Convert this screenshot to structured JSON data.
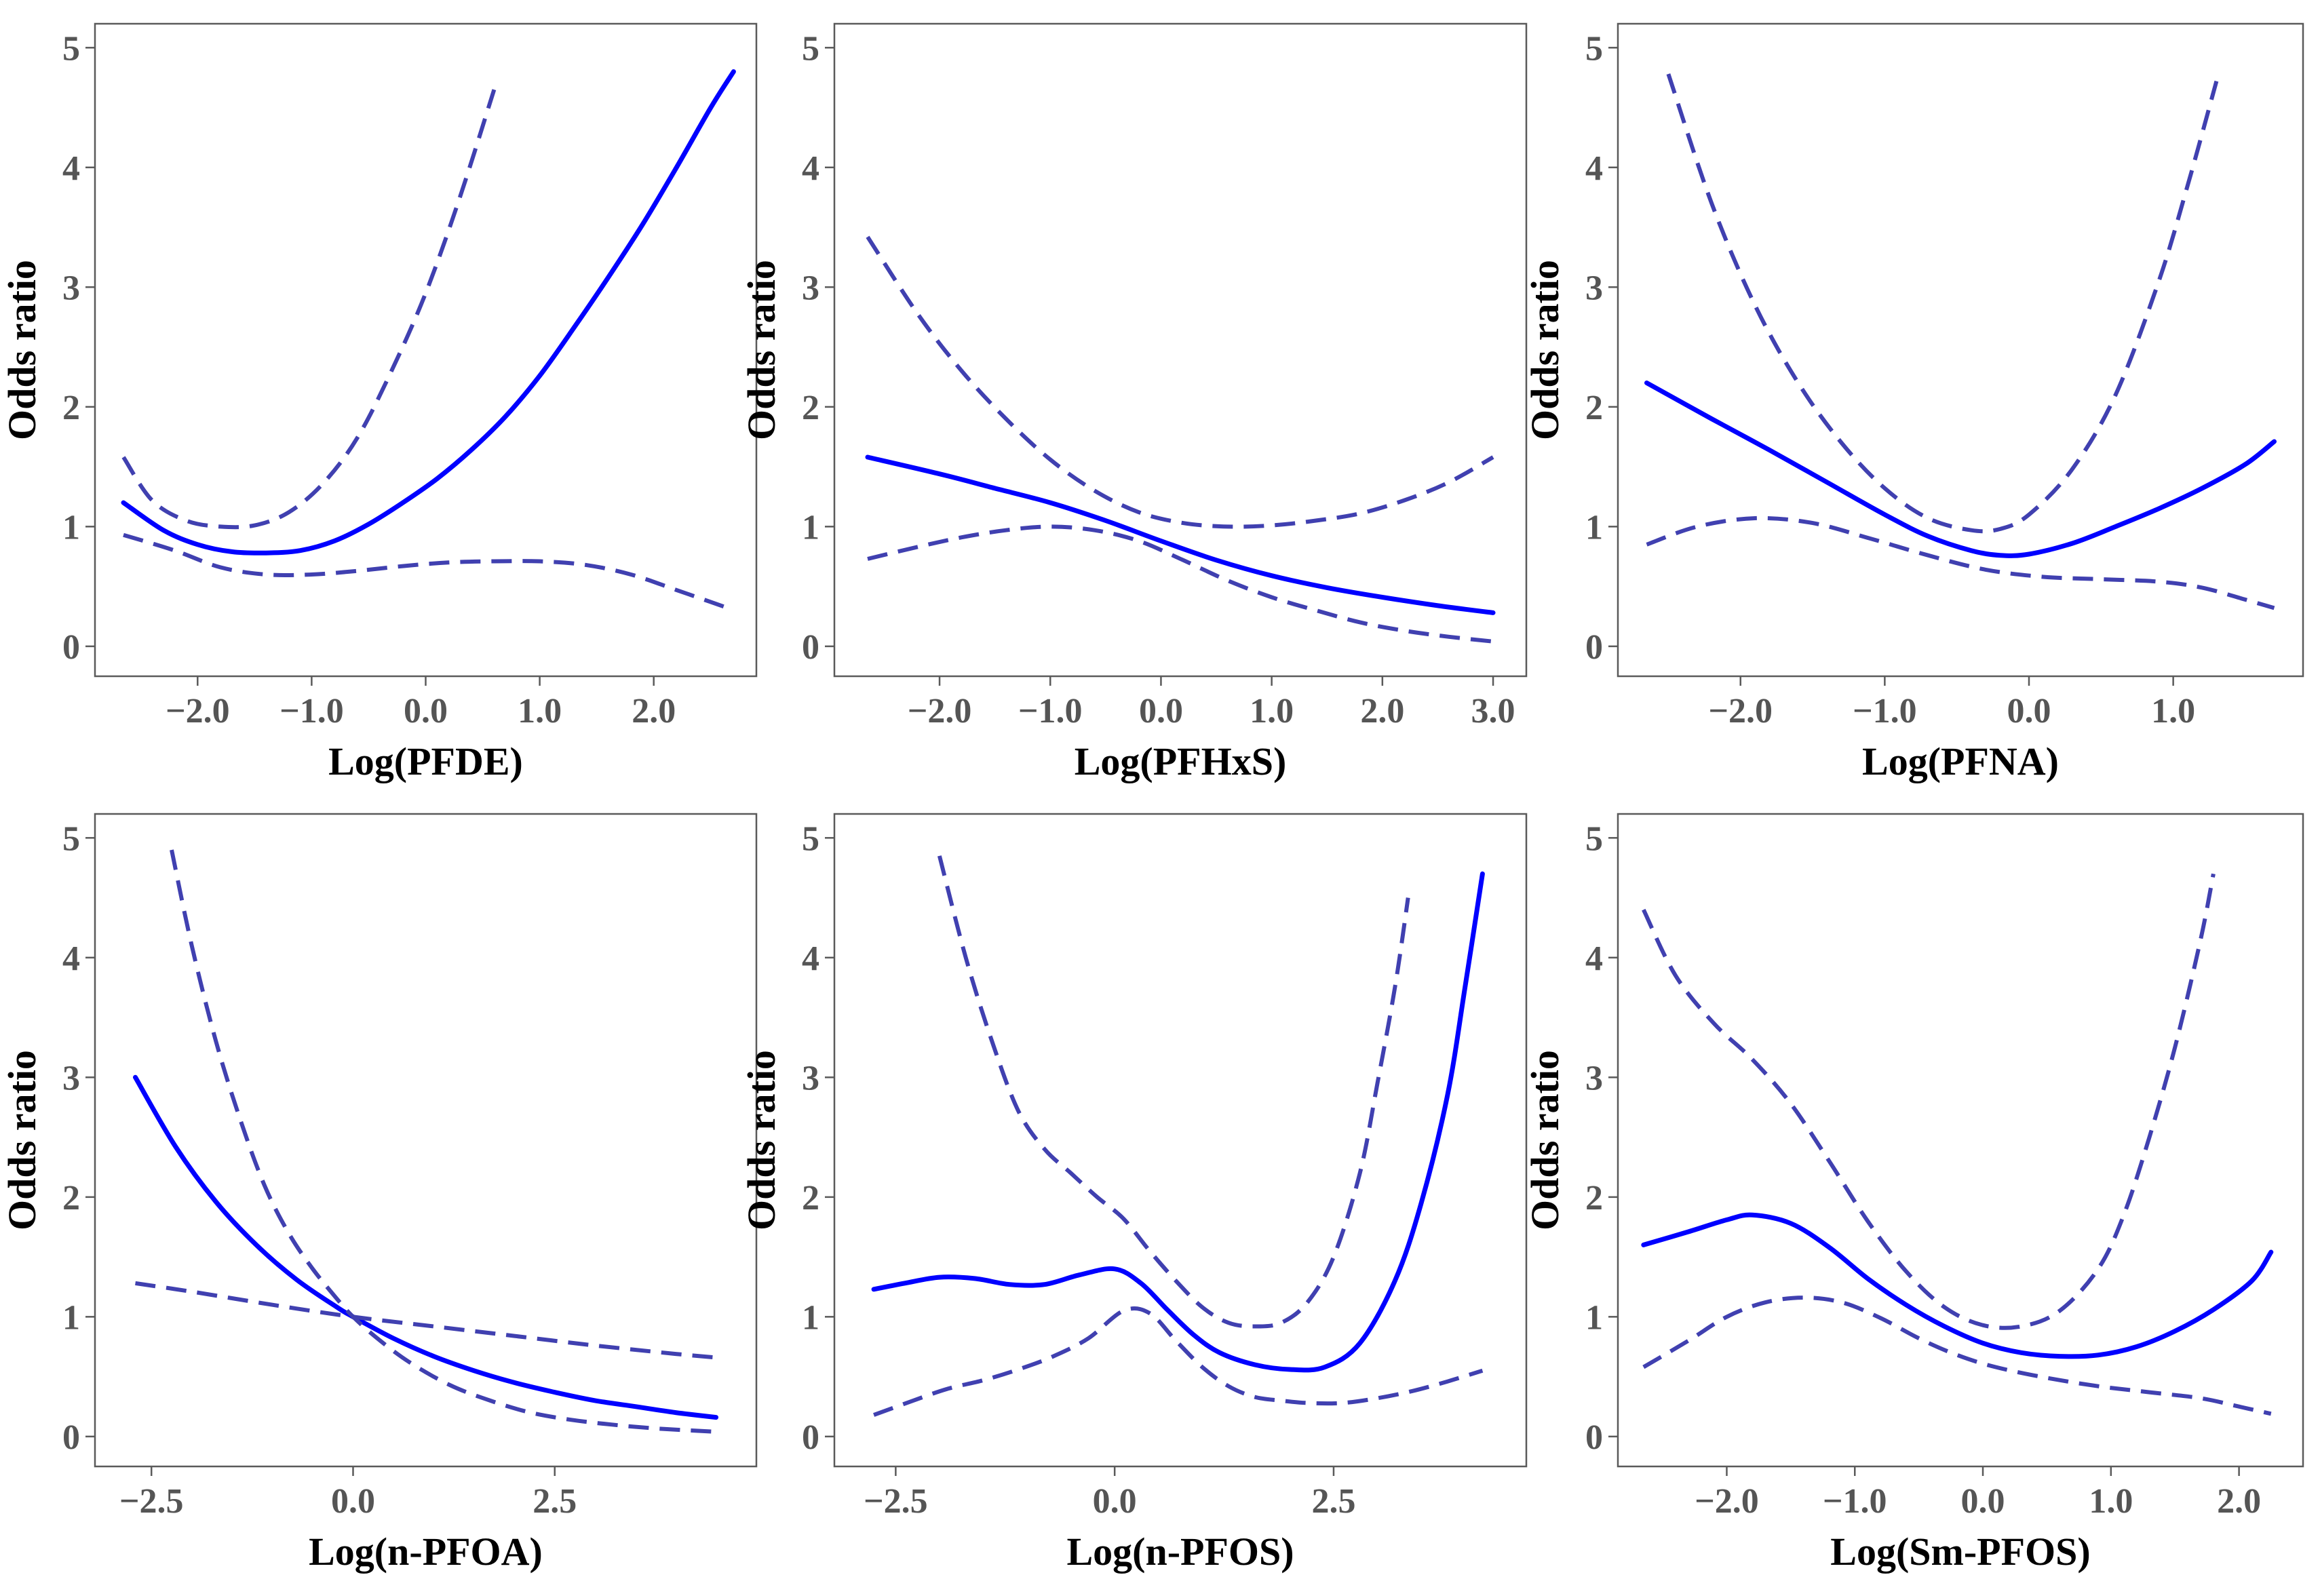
{
  "colors": {
    "estimate": "#0000ff",
    "ci": "#4040b0",
    "axis": "#5a5a5a",
    "tick_label": "#555555"
  },
  "chart_data": [
    {
      "type": "line",
      "title": "",
      "xlabel": "Log(PFDE)",
      "ylabel": "Odds ratio",
      "xlim": [
        -2.9,
        2.9
      ],
      "ylim": [
        -0.25,
        5.2
      ],
      "xticks": [
        -2.0,
        -1.0,
        0.0,
        1.0,
        2.0
      ],
      "xtick_labels": [
        "−2.0",
        "−1.0",
        "0.0",
        "1.0",
        "2.0"
      ],
      "yticks": [
        0,
        1,
        2,
        3,
        4,
        5
      ],
      "ytick_labels": [
        "0",
        "1",
        "2",
        "3",
        "4",
        "5"
      ],
      "series": [
        {
          "name": "odds ratio",
          "style": "solid",
          "x": [
            -2.65,
            -2.3,
            -2.0,
            -1.7,
            -1.4,
            -1.1,
            -0.8,
            -0.5,
            -0.2,
            0.1,
            0.4,
            0.7,
            1.0,
            1.3,
            1.6,
            1.9,
            2.2,
            2.5,
            2.7
          ],
          "y": [
            1.2,
            0.97,
            0.85,
            0.79,
            0.78,
            0.8,
            0.88,
            1.02,
            1.2,
            1.4,
            1.64,
            1.92,
            2.26,
            2.66,
            3.08,
            3.52,
            4.0,
            4.5,
            4.8
          ]
        },
        {
          "name": "upper 95% CI",
          "style": "dashed",
          "x": [
            -2.65,
            -2.4,
            -2.1,
            -1.8,
            -1.5,
            -1.2,
            -0.9,
            -0.6,
            -0.3,
            0.0,
            0.3,
            0.6
          ],
          "y": [
            1.58,
            1.22,
            1.05,
            1.0,
            1.01,
            1.12,
            1.36,
            1.74,
            2.3,
            2.95,
            3.75,
            4.65
          ]
        },
        {
          "name": "lower 95% CI",
          "style": "dashed",
          "x": [
            -2.65,
            -2.2,
            -1.8,
            -1.4,
            -1.0,
            -0.6,
            -0.2,
            0.2,
            0.6,
            1.0,
            1.4,
            1.8,
            2.2,
            2.65
          ],
          "y": [
            0.93,
            0.8,
            0.66,
            0.6,
            0.6,
            0.63,
            0.67,
            0.7,
            0.71,
            0.71,
            0.68,
            0.6,
            0.47,
            0.32
          ]
        }
      ]
    },
    {
      "type": "line",
      "title": "",
      "xlabel": "Log(PFHxS)",
      "ylabel": "Odds ratio",
      "xlim": [
        -2.95,
        3.3
      ],
      "ylim": [
        -0.25,
        5.2
      ],
      "xticks": [
        -2.0,
        -1.0,
        0.0,
        1.0,
        2.0,
        3.0
      ],
      "xtick_labels": [
        "−2.0",
        "−1.0",
        "0.0",
        "1.0",
        "2.0",
        "3.0"
      ],
      "yticks": [
        0,
        1,
        2,
        3,
        4,
        5
      ],
      "ytick_labels": [
        "0",
        "1",
        "2",
        "3",
        "4",
        "5"
      ],
      "series": [
        {
          "name": "odds ratio",
          "style": "solid",
          "x": [
            -2.65,
            -2.0,
            -1.5,
            -1.0,
            -0.5,
            0.0,
            0.5,
            1.0,
            1.5,
            2.0,
            2.5,
            3.0
          ],
          "y": [
            1.58,
            1.44,
            1.32,
            1.2,
            1.05,
            0.88,
            0.72,
            0.59,
            0.49,
            0.41,
            0.34,
            0.28
          ]
        },
        {
          "name": "upper 95% CI",
          "style": "dashed",
          "x": [
            -2.65,
            -2.2,
            -1.8,
            -1.4,
            -1.0,
            -0.6,
            -0.2,
            0.2,
            0.6,
            1.0,
            1.4,
            1.8,
            2.2,
            2.6,
            3.0
          ],
          "y": [
            3.42,
            2.78,
            2.3,
            1.9,
            1.56,
            1.3,
            1.12,
            1.03,
            1.0,
            1.01,
            1.05,
            1.11,
            1.22,
            1.37,
            1.58
          ]
        },
        {
          "name": "lower 95% CI",
          "style": "dashed",
          "x": [
            -2.65,
            -2.2,
            -1.8,
            -1.4,
            -1.0,
            -0.6,
            -0.2,
            0.2,
            0.6,
            1.0,
            1.4,
            1.8,
            2.2,
            2.6,
            3.0
          ],
          "y": [
            0.73,
            0.83,
            0.91,
            0.97,
            1.0,
            0.97,
            0.88,
            0.72,
            0.55,
            0.41,
            0.3,
            0.2,
            0.13,
            0.08,
            0.04
          ]
        }
      ]
    },
    {
      "type": "line",
      "title": "",
      "xlabel": "Log(PFNA)",
      "ylabel": "Odds ratio",
      "xlim": [
        -2.85,
        1.9
      ],
      "ylim": [
        -0.25,
        5.2
      ],
      "xticks": [
        -2.0,
        -1.0,
        0.0,
        1.0
      ],
      "xtick_labels": [
        "−2.0",
        "−1.0",
        "0.0",
        "1.0"
      ],
      "yticks": [
        0,
        1,
        2,
        3,
        4,
        5
      ],
      "ytick_labels": [
        "0",
        "1",
        "2",
        "3",
        "4",
        "5"
      ],
      "series": [
        {
          "name": "odds ratio",
          "style": "solid",
          "x": [
            -2.65,
            -2.2,
            -1.8,
            -1.4,
            -1.0,
            -0.7,
            -0.4,
            -0.2,
            0.0,
            0.3,
            0.6,
            0.9,
            1.2,
            1.5,
            1.7
          ],
          "y": [
            2.2,
            1.9,
            1.64,
            1.37,
            1.1,
            0.92,
            0.8,
            0.76,
            0.77,
            0.86,
            1.0,
            1.15,
            1.32,
            1.52,
            1.71
          ]
        },
        {
          "name": "upper 95% CI",
          "style": "dashed",
          "x": [
            -2.5,
            -2.2,
            -1.9,
            -1.6,
            -1.3,
            -1.0,
            -0.7,
            -0.4,
            -0.2,
            0.0,
            0.3,
            0.6,
            0.9,
            1.1,
            1.3
          ],
          "y": [
            4.78,
            3.7,
            2.85,
            2.2,
            1.7,
            1.32,
            1.07,
            0.97,
            0.98,
            1.1,
            1.48,
            2.1,
            3.05,
            3.85,
            4.72
          ]
        },
        {
          "name": "lower 95% CI",
          "style": "dashed",
          "x": [
            -2.65,
            -2.3,
            -1.9,
            -1.5,
            -1.1,
            -0.7,
            -0.3,
            0.1,
            0.5,
            0.9,
            1.2,
            1.5,
            1.7
          ],
          "y": [
            0.85,
            1.0,
            1.07,
            1.03,
            0.9,
            0.76,
            0.64,
            0.58,
            0.56,
            0.54,
            0.49,
            0.39,
            0.32
          ]
        }
      ]
    },
    {
      "type": "line",
      "title": "",
      "xlabel": "Log(n-PFOA)",
      "ylabel": "Odds ratio",
      "xlim": [
        -3.2,
        5.0
      ],
      "ylim": [
        -0.25,
        5.2
      ],
      "xticks": [
        -2.5,
        0.0,
        2.5
      ],
      "xtick_labels": [
        "−2.5",
        "0.0",
        "2.5"
      ],
      "yticks": [
        0,
        1,
        2,
        3,
        4,
        5
      ],
      "ytick_labels": [
        "0",
        "1",
        "2",
        "3",
        "4",
        "5"
      ],
      "series": [
        {
          "name": "odds ratio",
          "style": "solid",
          "x": [
            -2.7,
            -2.2,
            -1.7,
            -1.2,
            -0.7,
            -0.2,
            0.0,
            0.5,
            1.0,
            1.5,
            2.0,
            2.5,
            3.0,
            3.5,
            4.0,
            4.5
          ],
          "y": [
            3.0,
            2.42,
            1.96,
            1.6,
            1.31,
            1.08,
            1.0,
            0.82,
            0.67,
            0.55,
            0.45,
            0.37,
            0.3,
            0.25,
            0.2,
            0.16
          ]
        },
        {
          "name": "upper 95% CI",
          "style": "dashed",
          "x": [
            -2.25,
            -2.0,
            -1.7,
            -1.4,
            -1.1,
            -0.8,
            -0.5,
            -0.2,
            0.0,
            0.3,
            0.7,
            1.2,
            1.7,
            2.2,
            2.7,
            3.2,
            3.7,
            4.2,
            4.5
          ],
          "y": [
            4.9,
            4.1,
            3.3,
            2.65,
            2.1,
            1.7,
            1.4,
            1.15,
            1.0,
            0.82,
            0.62,
            0.43,
            0.3,
            0.2,
            0.14,
            0.1,
            0.07,
            0.05,
            0.04
          ]
        },
        {
          "name": "lower 95% CI",
          "style": "dashed",
          "x": [
            -2.7,
            -2.0,
            -1.0,
            0.0,
            1.0,
            2.0,
            3.0,
            4.0,
            4.5
          ],
          "y": [
            1.28,
            1.21,
            1.1,
            1.0,
            0.92,
            0.84,
            0.76,
            0.69,
            0.66
          ]
        }
      ]
    },
    {
      "type": "line",
      "title": "",
      "xlabel": "Log(n-PFOS)",
      "ylabel": "Odds ratio",
      "xlim": [
        -3.2,
        4.7
      ],
      "ylim": [
        -0.25,
        5.2
      ],
      "xticks": [
        -2.5,
        0.0,
        2.5
      ],
      "xtick_labels": [
        "−2.5",
        "0.0",
        "2.5"
      ],
      "yticks": [
        0,
        1,
        2,
        3,
        4,
        5
      ],
      "ytick_labels": [
        "0",
        "1",
        "2",
        "3",
        "4",
        "5"
      ],
      "series": [
        {
          "name": "odds ratio",
          "style": "solid",
          "x": [
            -2.75,
            -2.4,
            -2.0,
            -1.6,
            -1.2,
            -0.8,
            -0.4,
            0.0,
            0.3,
            0.6,
            0.9,
            1.2,
            1.6,
            2.0,
            2.4,
            2.8,
            3.2,
            3.5,
            3.8,
            4.0,
            4.2
          ],
          "y": [
            1.23,
            1.28,
            1.33,
            1.32,
            1.27,
            1.27,
            1.35,
            1.4,
            1.28,
            1.06,
            0.85,
            0.7,
            0.6,
            0.56,
            0.58,
            0.78,
            1.3,
            1.95,
            2.85,
            3.75,
            4.7
          ]
        },
        {
          "name": "upper 95% CI",
          "style": "dashed",
          "x": [
            -2.0,
            -1.7,
            -1.4,
            -1.1,
            -0.8,
            -0.5,
            -0.2,
            0.1,
            0.4,
            0.7,
            1.0,
            1.3,
            1.6,
            1.9,
            2.2,
            2.5,
            2.8,
            3.0,
            3.2,
            3.35
          ],
          "y": [
            4.85,
            4.0,
            3.3,
            2.72,
            2.4,
            2.2,
            2.0,
            1.82,
            1.55,
            1.3,
            1.08,
            0.95,
            0.92,
            0.95,
            1.12,
            1.5,
            2.2,
            2.95,
            3.75,
            4.5
          ]
        },
        {
          "name": "lower 95% CI",
          "style": "dashed",
          "x": [
            -2.75,
            -2.3,
            -1.9,
            -1.5,
            -1.1,
            -0.7,
            -0.3,
            0.1,
            0.4,
            0.7,
            1.0,
            1.3,
            1.6,
            1.9,
            2.2,
            2.6,
            3.0,
            3.4,
            3.8,
            4.2
          ],
          "y": [
            0.18,
            0.3,
            0.4,
            0.47,
            0.56,
            0.67,
            0.82,
            1.05,
            1.03,
            0.8,
            0.58,
            0.42,
            0.33,
            0.3,
            0.28,
            0.28,
            0.32,
            0.38,
            0.46,
            0.55
          ]
        }
      ]
    },
    {
      "type": "line",
      "title": "",
      "xlabel": "Log(Sm-PFOS)",
      "ylabel": "Odds ratio",
      "xlim": [
        -2.85,
        2.5
      ],
      "ylim": [
        -0.25,
        5.2
      ],
      "xticks": [
        -2.0,
        -1.0,
        0.0,
        1.0,
        2.0
      ],
      "xtick_labels": [
        "−2.0",
        "−1.0",
        "0.0",
        "1.0",
        "2.0"
      ],
      "yticks": [
        0,
        1,
        2,
        3,
        4,
        5
      ],
      "ytick_labels": [
        "0",
        "1",
        "2",
        "3",
        "4",
        "5"
      ],
      "series": [
        {
          "name": "odds ratio",
          "style": "solid",
          "x": [
            -2.65,
            -2.3,
            -2.0,
            -1.8,
            -1.5,
            -1.2,
            -0.9,
            -0.6,
            -0.3,
            0.0,
            0.3,
            0.6,
            0.9,
            1.2,
            1.5,
            1.8,
            2.1,
            2.25
          ],
          "y": [
            1.6,
            1.71,
            1.81,
            1.85,
            1.78,
            1.58,
            1.32,
            1.1,
            0.92,
            0.78,
            0.7,
            0.67,
            0.68,
            0.75,
            0.88,
            1.06,
            1.3,
            1.54
          ]
        },
        {
          "name": "upper 95% CI",
          "style": "dashed",
          "x": [
            -2.65,
            -2.4,
            -2.1,
            -1.8,
            -1.5,
            -1.2,
            -0.9,
            -0.6,
            -0.3,
            0.0,
            0.3,
            0.6,
            0.9,
            1.1,
            1.3,
            1.5,
            1.7,
            1.8
          ],
          "y": [
            4.4,
            3.85,
            3.45,
            3.15,
            2.78,
            2.3,
            1.8,
            1.38,
            1.08,
            0.93,
            0.92,
            1.05,
            1.4,
            1.85,
            2.5,
            3.25,
            4.15,
            4.7
          ]
        },
        {
          "name": "lower 95% CI",
          "style": "dashed",
          "x": [
            -2.65,
            -2.3,
            -2.0,
            -1.7,
            -1.4,
            -1.1,
            -0.8,
            -0.5,
            -0.2,
            0.1,
            0.5,
            0.9,
            1.3,
            1.7,
            2.0,
            2.25
          ],
          "y": [
            0.58,
            0.8,
            1.0,
            1.12,
            1.16,
            1.12,
            0.99,
            0.82,
            0.68,
            0.58,
            0.49,
            0.42,
            0.37,
            0.32,
            0.25,
            0.19
          ]
        }
      ]
    }
  ]
}
